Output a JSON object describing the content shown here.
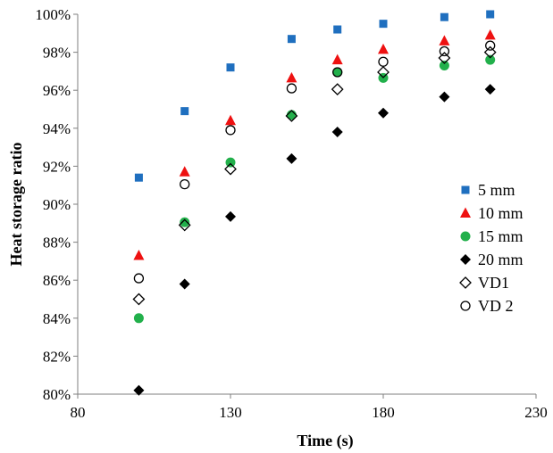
{
  "chart_data": {
    "type": "scatter",
    "title": "",
    "xlabel": "Time (s)",
    "ylabel": "Heat storage ratio",
    "xlim": [
      80,
      230
    ],
    "ylim": [
      80,
      100
    ],
    "x_ticks": [
      "80",
      "130",
      "180",
      "230"
    ],
    "y_ticks": [
      "80%",
      "82%",
      "84%",
      "86%",
      "88%",
      "90%",
      "92%",
      "94%",
      "96%",
      "98%",
      "100%"
    ],
    "grid": false,
    "legend_position": "right",
    "series": [
      {
        "name": "5 mm",
        "marker": "square",
        "color": "#1f6fbf",
        "x": [
          100,
          115,
          130,
          150,
          165,
          180,
          200,
          215
        ],
        "y": [
          91.4,
          94.9,
          97.2,
          98.7,
          99.2,
          99.5,
          99.85,
          100.0
        ]
      },
      {
        "name": "10 mm",
        "marker": "triangle",
        "color": "#ee1111",
        "x": [
          100,
          115,
          130,
          150,
          165,
          180,
          200,
          215
        ],
        "y": [
          87.3,
          91.7,
          94.4,
          96.65,
          97.6,
          98.15,
          98.6,
          98.9
        ]
      },
      {
        "name": "15 mm",
        "marker": "circle",
        "color": "#22b04b",
        "x": [
          100,
          115,
          130,
          150,
          165,
          180,
          200,
          215
        ],
        "y": [
          84.0,
          89.05,
          92.2,
          94.7,
          96.95,
          96.65,
          97.3,
          97.6
        ]
      },
      {
        "name": "20 mm",
        "marker": "diamond",
        "color": "#000000",
        "x": [
          100,
          115,
          130,
          150,
          165,
          180,
          200,
          215
        ],
        "y": [
          80.2,
          85.8,
          89.35,
          92.4,
          93.8,
          94.8,
          95.65,
          96.05
        ]
      },
      {
        "name": "VD1",
        "marker": "diamond-open",
        "color": "#000000",
        "x": [
          100,
          115,
          130,
          150,
          165,
          180,
          200,
          215
        ],
        "y": [
          85.0,
          88.9,
          91.85,
          94.65,
          96.05,
          96.95,
          97.7,
          98.0
        ]
      },
      {
        "name": "VD 2",
        "marker": "circle-open",
        "color": "#000000",
        "x": [
          100,
          115,
          130,
          150,
          165,
          180,
          200,
          215
        ],
        "y": [
          86.1,
          91.05,
          93.9,
          96.1,
          96.95,
          97.5,
          98.05,
          98.35
        ]
      }
    ]
  }
}
